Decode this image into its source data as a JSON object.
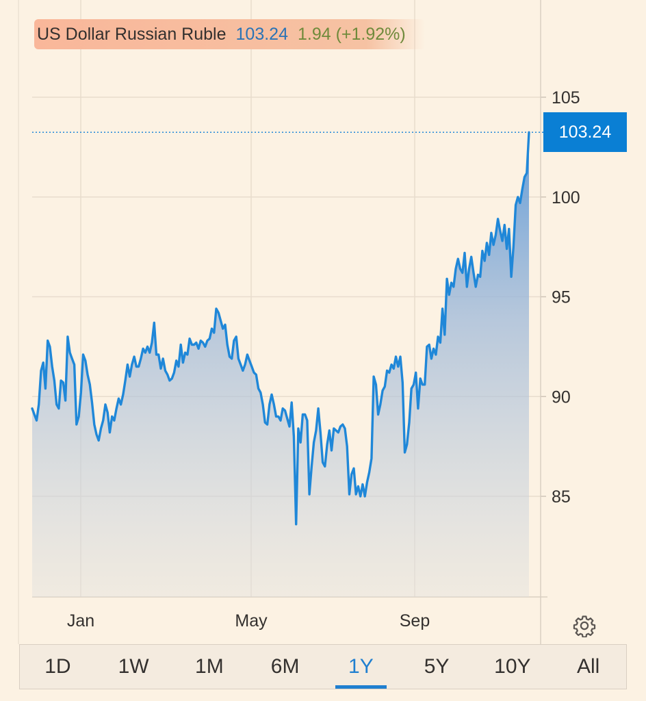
{
  "header": {
    "name": "US Dollar Russian Ruble",
    "price": "103.24",
    "change": "1.94 (+1.92%)"
  },
  "last_price_label": "103.24",
  "settings_icon": "gear-icon",
  "range_tabs": [
    {
      "label": "1D",
      "active": false
    },
    {
      "label": "1W",
      "active": false
    },
    {
      "label": "1M",
      "active": false
    },
    {
      "label": "6M",
      "active": false
    },
    {
      "label": "1Y",
      "active": true
    },
    {
      "label": "5Y",
      "active": false
    },
    {
      "label": "10Y",
      "active": false
    },
    {
      "label": "All",
      "active": false
    }
  ],
  "colors": {
    "line": "#1f87d8",
    "price_label_bg": "#0a7fd4",
    "background": "#fcf2e3"
  },
  "chart_data": {
    "type": "area",
    "title": "US Dollar Russian Ruble",
    "xlabel": "",
    "ylabel": "",
    "x_ticks": [
      "Jan",
      "May",
      "Sep"
    ],
    "y_ticks": [
      85,
      90,
      95,
      100,
      105
    ],
    "ylim": [
      80,
      106.5
    ],
    "grid": true,
    "last_value": 103.24,
    "series": [
      {
        "name": "USD/RUB",
        "values": [
          89.4,
          89.1,
          88.8,
          89.6,
          91.3,
          91.7,
          90.4,
          92.8,
          92.5,
          91.5,
          90.8,
          89.6,
          89.4,
          90.8,
          90.7,
          89.8,
          93.0,
          92.2,
          91.9,
          91.6,
          88.6,
          89.0,
          90.2,
          92.1,
          91.8,
          91.1,
          90.6,
          89.7,
          88.6,
          88.1,
          87.8,
          88.4,
          88.8,
          89.6,
          89.2,
          88.2,
          89.0,
          88.8,
          89.4,
          89.9,
          89.6,
          90.1,
          90.8,
          91.6,
          91.0,
          91.6,
          92.0,
          91.5,
          91.5,
          91.9,
          92.4,
          92.2,
          92.5,
          92.2,
          92.7,
          93.7,
          92.1,
          92.1,
          91.4,
          91.9,
          91.3,
          91.1,
          90.8,
          90.9,
          91.2,
          91.8,
          91.5,
          92.6,
          91.7,
          92.2,
          92.1,
          92.9,
          92.6,
          92.6,
          92.7,
          92.4,
          92.8,
          92.7,
          92.5,
          92.8,
          92.9,
          93.4,
          93.2,
          94.4,
          94.2,
          93.8,
          93.4,
          93.6,
          92.6,
          92.0,
          91.9,
          92.8,
          93.0,
          91.9,
          91.6,
          91.3,
          91.6,
          92.1,
          91.8,
          91.5,
          91.2,
          91.1,
          90.4,
          90.2,
          89.6,
          88.7,
          88.6,
          89.6,
          90.1,
          89.6,
          89.0,
          89.0,
          88.8,
          89.4,
          89.3,
          88.9,
          88.5,
          89.7,
          88.0,
          83.6,
          88.4,
          87.7,
          89.1,
          89.1,
          88.8,
          85.1,
          86.5,
          87.7,
          88.3,
          89.4,
          88.2,
          86.7,
          86.5,
          87.6,
          88.3,
          87.3,
          88.4,
          88.3,
          88.2,
          88.5,
          88.6,
          88.4,
          87.5,
          85.1,
          86.1,
          86.4,
          85.1,
          85.5,
          85.0,
          85.6,
          85.0,
          85.7,
          86.2,
          86.9,
          91.0,
          90.6,
          89.1,
          89.6,
          90.3,
          90.5,
          91.3,
          91.2,
          91.6,
          91.4,
          92.0,
          91.5,
          92.0,
          90.7,
          87.2,
          87.6,
          88.7,
          90.4,
          90.6,
          91.2,
          89.4,
          90.9,
          90.6,
          90.6,
          92.5,
          92.6,
          91.9,
          92.4,
          92.1,
          93.0,
          92.7,
          94.4,
          93.1,
          95.9,
          95.1,
          95.7,
          95.5,
          96.4,
          96.9,
          96.4,
          96.2,
          97.2,
          95.5,
          96.4,
          97.0,
          96.2,
          95.5,
          96.1,
          96.0,
          97.3,
          96.8,
          97.7,
          97.1,
          98.2,
          97.6,
          98.1,
          98.9,
          98.3,
          97.8,
          98.6,
          97.4,
          98.4,
          96.0,
          97.5,
          99.6,
          100.0,
          99.7,
          100.4,
          101.0,
          101.2,
          103.24
        ]
      }
    ]
  }
}
